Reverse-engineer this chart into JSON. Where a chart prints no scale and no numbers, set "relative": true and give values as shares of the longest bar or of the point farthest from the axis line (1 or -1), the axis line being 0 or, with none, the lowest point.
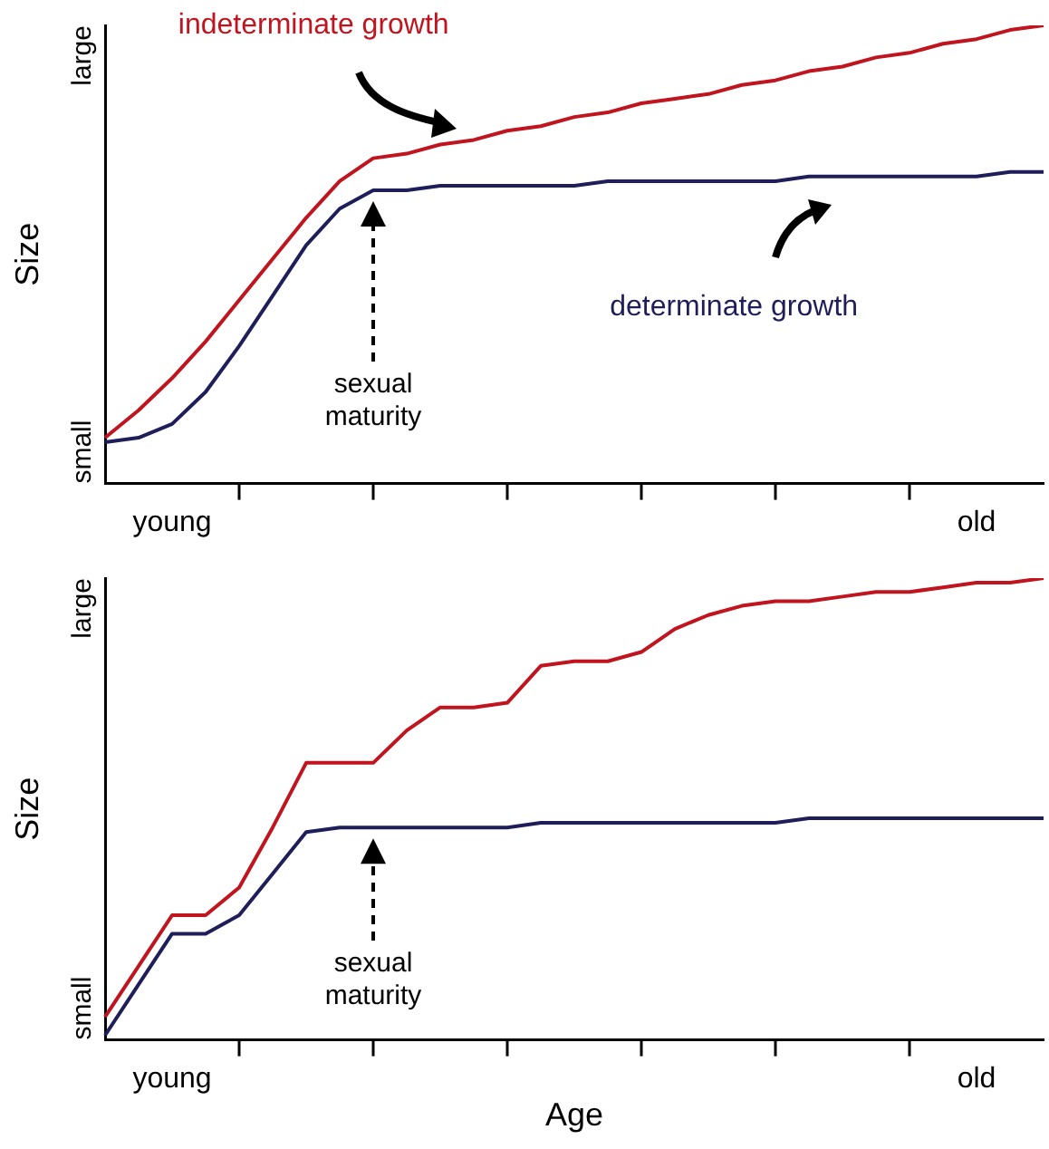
{
  "chart_data": [
    {
      "type": "line",
      "relative": true,
      "ylabel": "Size",
      "legend": false,
      "grid": false,
      "marker": "none",
      "line_style": "solid",
      "categories": [
        null,
        null,
        "young",
        null,
        null,
        null,
        null,
        null,
        null,
        null,
        null,
        null,
        null,
        null,
        null,
        null,
        null,
        null,
        null,
        null,
        null,
        null,
        null,
        null,
        null,
        null,
        "old",
        null,
        null
      ],
      "series": [
        {
          "name": "indeterminate growth",
          "color": "#c0141e",
          "values": [
            0.1,
            0.16,
            0.23,
            0.31,
            0.4,
            0.49,
            0.58,
            0.66,
            0.71,
            0.72,
            0.74,
            0.75,
            0.77,
            0.78,
            0.8,
            0.81,
            0.83,
            0.84,
            0.85,
            0.87,
            0.88,
            0.9,
            0.91,
            0.93,
            0.94,
            0.96,
            0.97,
            0.99,
            1
          ]
        },
        {
          "name": "determinate growth",
          "color": "#1e1e5a",
          "values": [
            0.09,
            0.1,
            0.13,
            0.2,
            0.3,
            0.41,
            0.52,
            0.6,
            0.64,
            0.64,
            0.65,
            0.65,
            0.65,
            0.65,
            0.65,
            0.66,
            0.66,
            0.66,
            0.66,
            0.66,
            0.66,
            0.67,
            0.67,
            0.67,
            0.67,
            0.67,
            0.67,
            0.68,
            0.68
          ]
        }
      ],
      "annotations": [
        "small",
        "large",
        "sexual maturity"
      ]
    },
    {
      "type": "line",
      "relative": true,
      "ylabel": "Size",
      "xlabel": "Age",
      "legend": false,
      "grid": false,
      "marker": "none",
      "line_style": "solid",
      "categories": [
        null,
        null,
        "young",
        null,
        null,
        null,
        null,
        null,
        null,
        null,
        null,
        null,
        null,
        null,
        null,
        null,
        null,
        null,
        null,
        null,
        null,
        null,
        null,
        null,
        null,
        null,
        "old",
        null,
        null
      ],
      "series": [
        {
          "color": "#c0141e",
          "values": [
            0.05,
            0.16,
            0.27,
            0.27,
            0.33,
            0.46,
            0.6,
            0.6,
            0.6,
            0.67,
            0.72,
            0.72,
            0.73,
            0.81,
            0.82,
            0.82,
            0.84,
            0.89,
            0.92,
            0.94,
            0.95,
            0.95,
            0.96,
            0.97,
            0.97,
            0.98,
            0.99,
            0.99,
            1
          ]
        },
        {
          "color": "#1e1e5a",
          "values": [
            0.01,
            0.12,
            0.23,
            0.23,
            0.27,
            0.36,
            0.45,
            0.46,
            0.46,
            0.46,
            0.46,
            0.46,
            0.46,
            0.47,
            0.47,
            0.47,
            0.47,
            0.47,
            0.47,
            0.47,
            0.47,
            0.48,
            0.48,
            0.48,
            0.48,
            0.48,
            0.48,
            0.48,
            0.48
          ]
        }
      ],
      "annotations": [
        "small",
        "large",
        "sexual maturity"
      ]
    }
  ]
}
